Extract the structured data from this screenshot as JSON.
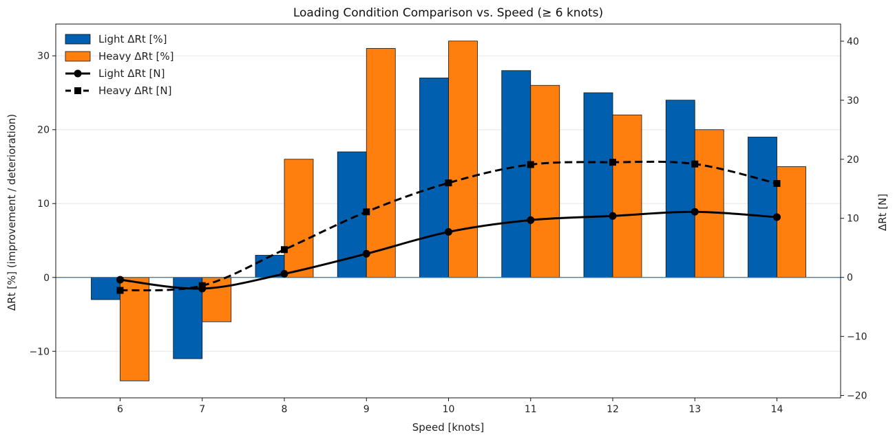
{
  "chart_data": {
    "type": "bar",
    "title": "Loading Condition Comparison vs. Speed (≥ 6 knots)",
    "xlabel": "Speed [knots]",
    "ylabel": "ΔRt [%] (improvement / deterioration)",
    "y2label": "ΔRt [N]",
    "categories": [
      "6",
      "7",
      "8",
      "9",
      "10",
      "11",
      "12",
      "13",
      "14"
    ],
    "ylim": [
      -16.3,
      34.3
    ],
    "y2lim": [
      -20.4,
      42.9
    ],
    "yticks": [
      -10,
      0,
      10,
      20,
      30
    ],
    "ytick_labels": [
      "−10",
      "0",
      "10",
      "20",
      "30"
    ],
    "y2ticks": [
      -20,
      -10,
      0,
      10,
      20,
      30,
      40
    ],
    "y2tick_labels": [
      "−20",
      "−10",
      "0",
      "10",
      "20",
      "30",
      "40"
    ],
    "grid": "horizontal",
    "legend_position": "top-left",
    "series": [
      {
        "name": "Light ΔRt [%]",
        "kind": "bar",
        "axis": "left",
        "color": "#005fae",
        "values": [
          -3,
          -11,
          3,
          17,
          27,
          28,
          25,
          24,
          19
        ]
      },
      {
        "name": "Heavy ΔRt [%]",
        "kind": "bar",
        "axis": "left",
        "color": "#ff7f0e",
        "values": [
          -14,
          -6,
          16,
          31,
          32,
          26,
          22,
          20,
          15
        ]
      },
      {
        "name": "Light ΔRt [N]",
        "kind": "line",
        "axis": "right",
        "color": "#000000",
        "style": "solid",
        "marker": "circle",
        "values": [
          -0.4,
          -1.9,
          0.6,
          4.0,
          7.7,
          9.7,
          10.4,
          11.1,
          10.2
        ]
      },
      {
        "name": "Heavy ΔRt [N]",
        "kind": "line",
        "axis": "right",
        "color": "#000000",
        "style": "dashed",
        "marker": "square",
        "values": [
          -2.2,
          -1.4,
          4.7,
          11.1,
          16.0,
          19.1,
          19.5,
          19.2,
          15.9
        ]
      }
    ]
  }
}
